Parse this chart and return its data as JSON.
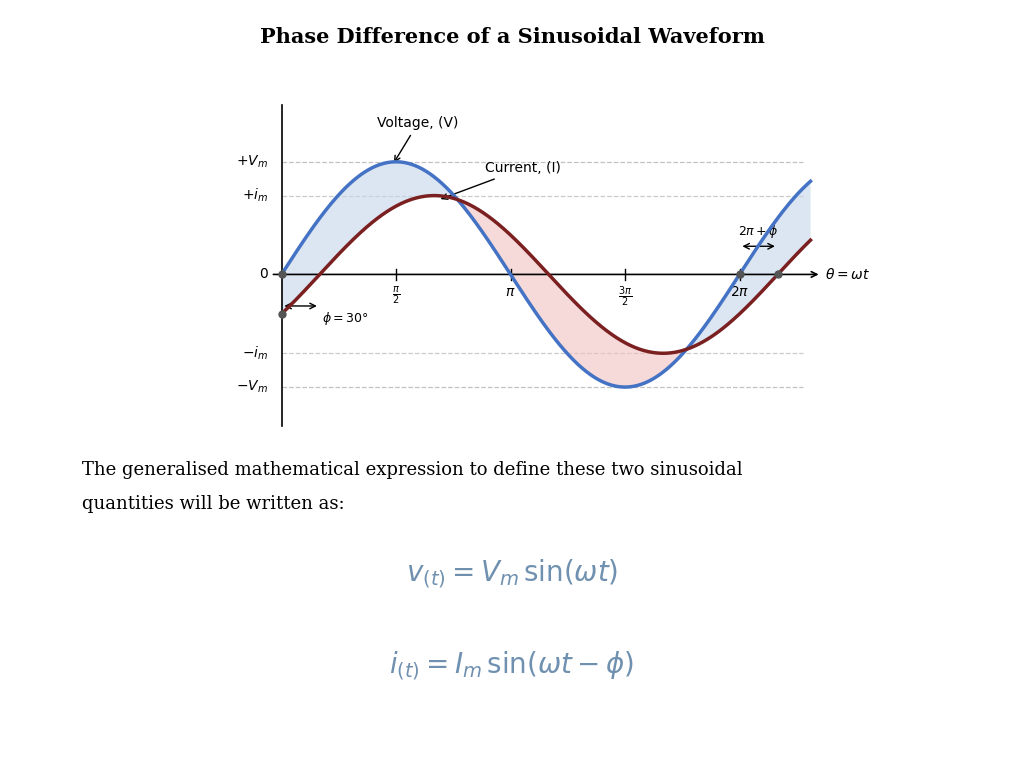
{
  "title": "Phase Difference of a Sinusoidal Waveform",
  "bg_color": "#ffffff",
  "voltage_color": "#4472C4",
  "current_color": "#7B2020",
  "fill_color_blue": "#C5D5EA",
  "fill_color_pink": "#F0C0C0",
  "phase_shift_deg": 30,
  "amplitude_v": 1.0,
  "amplitude_i": 0.7,
  "body_text_line1": "The generalised mathematical expression to define these two sinusoidal",
  "body_text_line2": "quantities will be written as:",
  "formula_color": "#7090B0",
  "axis_color": "#333333",
  "label_color": "#333333",
  "dashed_color": "#999999"
}
